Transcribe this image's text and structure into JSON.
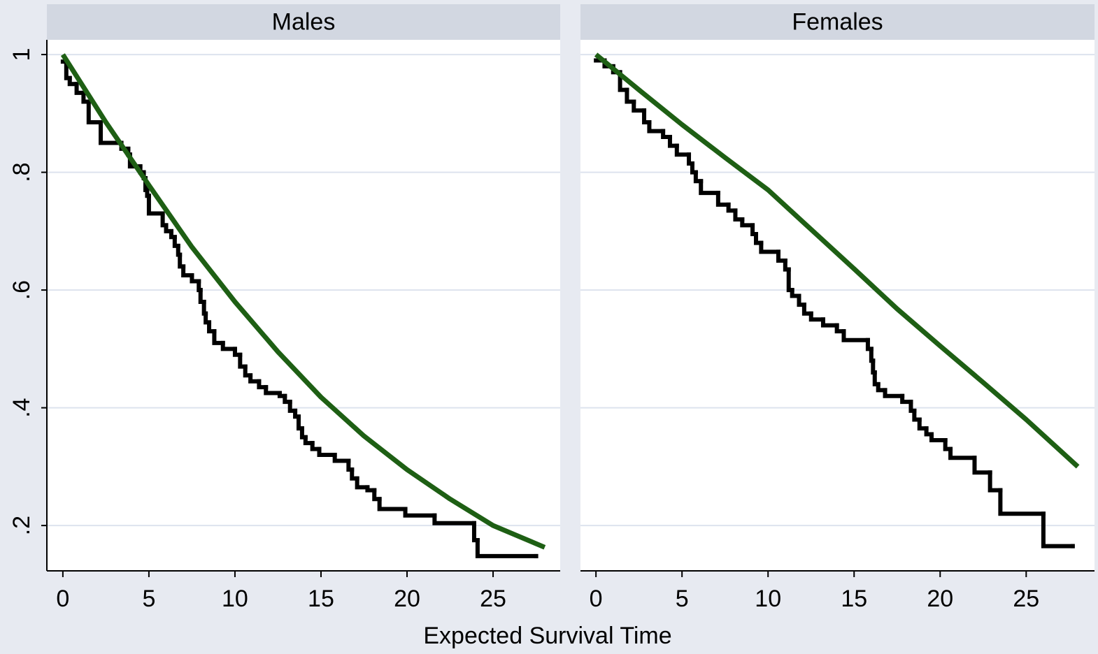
{
  "xlabel": "Expected Survival Time",
  "chart_data": [
    {
      "type": "line",
      "title": "Males",
      "xlim": [
        -0.93,
        28.9
      ],
      "xticks": [
        0,
        5,
        10,
        15,
        20,
        25
      ],
      "ylim": [
        0.123,
        1.025
      ],
      "yticks": [
        {
          "value": 0.2,
          "label": ".2"
        },
        {
          "value": 0.4,
          "label": ".4"
        },
        {
          "value": 0.6,
          "label": ".6"
        },
        {
          "value": 0.8,
          "label": ".8"
        },
        1
      ],
      "grid": true,
      "series": [
        {
          "color": "#000000",
          "step": true,
          "x": [
            0,
            0.2,
            0.4,
            0.8,
            1.2,
            1.5,
            2.2,
            3.4,
            3.8,
            3.9,
            4.5,
            4.7,
            4.8,
            4.9,
            5,
            5.8,
            6,
            6.3,
            6.5,
            6.7,
            6.8,
            7,
            7.5,
            7.9,
            8,
            8.2,
            8.3,
            8.5,
            8.8,
            9.3,
            10,
            10.3,
            10.6,
            10.9,
            11.4,
            11.8,
            12.6,
            12.9,
            13.2,
            13.5,
            13.7,
            13.9,
            14.1,
            14.5,
            14.9,
            15.8,
            16.6,
            16.8,
            17.1,
            17.7,
            18.1,
            18.4,
            19.9,
            21.6,
            23.9,
            24.1,
            27.5
          ],
          "values": [
            0.988,
            0.96,
            0.95,
            0.935,
            0.92,
            0.885,
            0.85,
            0.84,
            0.83,
            0.81,
            0.8,
            0.79,
            0.77,
            0.76,
            0.73,
            0.71,
            0.7,
            0.69,
            0.675,
            0.66,
            0.64,
            0.625,
            0.615,
            0.6,
            0.58,
            0.56,
            0.545,
            0.53,
            0.51,
            0.5,
            0.49,
            0.47,
            0.455,
            0.445,
            0.435,
            0.425,
            0.42,
            0.41,
            0.395,
            0.385,
            0.365,
            0.35,
            0.34,
            0.33,
            0.32,
            0.31,
            0.295,
            0.28,
            0.265,
            0.26,
            0.245,
            0.228,
            0.217,
            0.204,
            0.175,
            0.148,
            0.148
          ]
        },
        {
          "color": "#1e5f14",
          "x": [
            0,
            2.5,
            5,
            7.5,
            10,
            12.5,
            15,
            17.5,
            20,
            22.5,
            25,
            28
          ],
          "values": [
            1,
            0.885,
            0.778,
            0.673,
            0.58,
            0.495,
            0.418,
            0.352,
            0.295,
            0.245,
            0.2,
            0.163
          ]
        }
      ]
    },
    {
      "type": "line",
      "title": "Females",
      "xlim": [
        -0.9,
        28.97
      ],
      "xticks": [
        0,
        5,
        10,
        15,
        20,
        25
      ],
      "ylim": [
        0.123,
        1.025
      ],
      "yticks": [
        0.2,
        0.4,
        0.6,
        0.8,
        1
      ],
      "grid": true,
      "series": [
        {
          "color": "#000000",
          "step": true,
          "x": [
            0,
            0.5,
            1,
            1.4,
            1.8,
            2.2,
            2.8,
            3.1,
            3.9,
            4.3,
            4.7,
            5.4,
            5.6,
            5.8,
            6.1,
            7.1,
            7.7,
            8.1,
            8.5,
            9.1,
            9.3,
            9.6,
            10.6,
            11,
            11.2,
            11.4,
            11.8,
            12.1,
            12.5,
            13.2,
            14,
            14.4,
            15.8,
            16,
            16.1,
            16.2,
            16.4,
            16.8,
            17.8,
            18.3,
            18.5,
            18.8,
            19.2,
            19.5,
            20.3,
            20.6,
            22,
            22.9,
            23.5,
            26,
            27.7
          ],
          "values": [
            0.99,
            0.98,
            0.97,
            0.94,
            0.92,
            0.905,
            0.885,
            0.87,
            0.86,
            0.845,
            0.83,
            0.815,
            0.8,
            0.785,
            0.765,
            0.745,
            0.735,
            0.72,
            0.71,
            0.695,
            0.68,
            0.665,
            0.65,
            0.635,
            0.6,
            0.59,
            0.575,
            0.56,
            0.55,
            0.54,
            0.53,
            0.515,
            0.5,
            0.48,
            0.46,
            0.44,
            0.43,
            0.42,
            0.41,
            0.395,
            0.38,
            0.365,
            0.355,
            0.345,
            0.33,
            0.315,
            0.29,
            0.26,
            0.22,
            0.165,
            0.165
          ]
        },
        {
          "color": "#1e5f14",
          "x": [
            0,
            2.5,
            5,
            7.5,
            10,
            12.5,
            15,
            17.5,
            20,
            22.5,
            25,
            28
          ],
          "values": [
            1,
            0.94,
            0.881,
            0.825,
            0.77,
            0.703,
            0.636,
            0.568,
            0.505,
            0.443,
            0.38,
            0.3
          ]
        }
      ]
    }
  ]
}
